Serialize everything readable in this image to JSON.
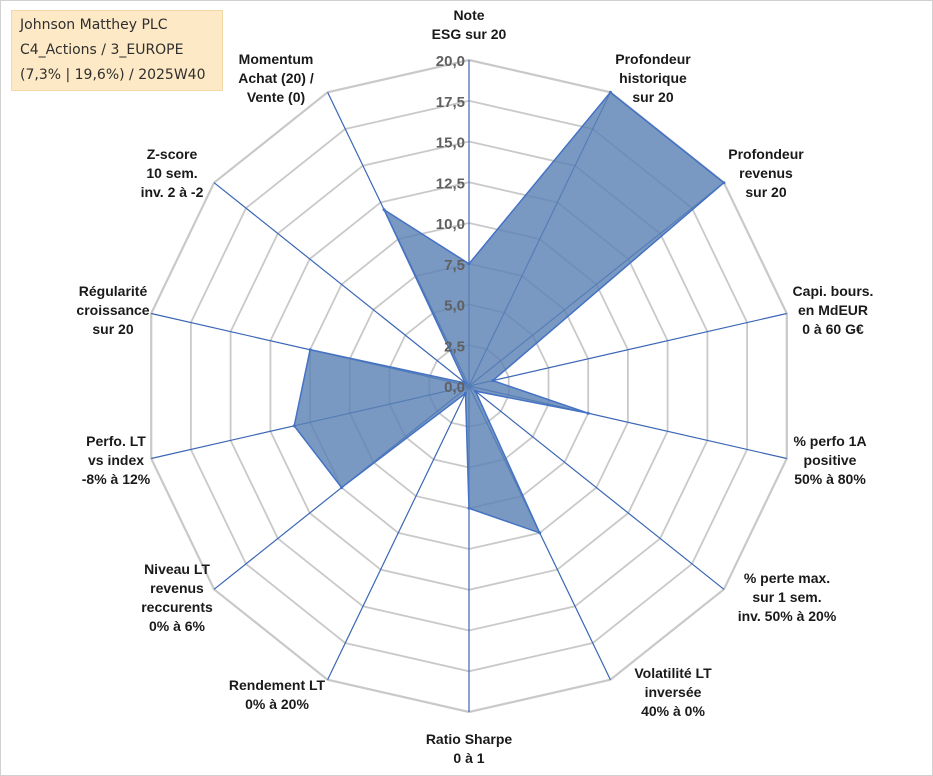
{
  "info": {
    "lines": [
      "Johnson Matthey PLC",
      "C4_Actions / 3_EUROPE",
      "(7,3% | 19,6%) / 2025W40"
    ]
  },
  "chart_data": {
    "type": "radar",
    "range": [
      0,
      20
    ],
    "ticks": [
      "0,0",
      "2,5",
      "5,0",
      "7,5",
      "10,0",
      "12,5",
      "15,0",
      "17,5",
      "20,0"
    ],
    "tick_values": [
      0,
      2.5,
      5,
      7.5,
      10,
      12.5,
      15,
      17.5,
      20
    ],
    "axes": [
      {
        "label": [
          "Note",
          "ESG sur 20"
        ],
        "value": 7.5
      },
      {
        "label": [
          "Profondeur",
          "historique",
          "sur 20"
        ],
        "value": 20
      },
      {
        "label": [
          "Profondeur",
          "revenus",
          "sur 20"
        ],
        "value": 20
      },
      {
        "label": [
          "Capi. bours.",
          "en MdEUR",
          "0 à 60 G€"
        ],
        "value": 1.5
      },
      {
        "label": [
          "% perfo 1A",
          "positive",
          "50% à 80%"
        ],
        "value": 7.5
      },
      {
        "label": [
          "% perte max.",
          "sur 1 sem.",
          "inv. 50% à 20%"
        ],
        "value": 0.5
      },
      {
        "label": [
          "Volatilité LT",
          "inversée",
          "40% à 0%"
        ],
        "value": 10
      },
      {
        "label": [
          "Ratio Sharpe",
          "0 à 1"
        ],
        "value": 7.5
      },
      {
        "label": [
          "Rendement LT",
          "0% à 20%"
        ],
        "value": 0.5
      },
      {
        "label": [
          "Niveau LT",
          "revenus",
          "reccurents",
          "0% à 6%"
        ],
        "value": 10
      },
      {
        "label": [
          "Perfo. LT",
          "vs index",
          "-8% à 12%"
        ],
        "value": 11
      },
      {
        "label": [
          "Régularité",
          "croissance",
          "sur 20"
        ],
        "value": 10
      },
      {
        "label": [
          "Z-score",
          "10 sem.",
          "inv. 2 à -2"
        ],
        "value": 0.3
      },
      {
        "label": [
          "Momentum",
          "Achat (20) /",
          "Vente (0)"
        ],
        "value": 12
      }
    ],
    "series": [
      {
        "name": "Johnson Matthey PLC",
        "color": "#4472c4",
        "fill": "#5b82b4"
      }
    ],
    "grid_color": "#c9c9c9",
    "spoke_color": "#3a66b5"
  }
}
